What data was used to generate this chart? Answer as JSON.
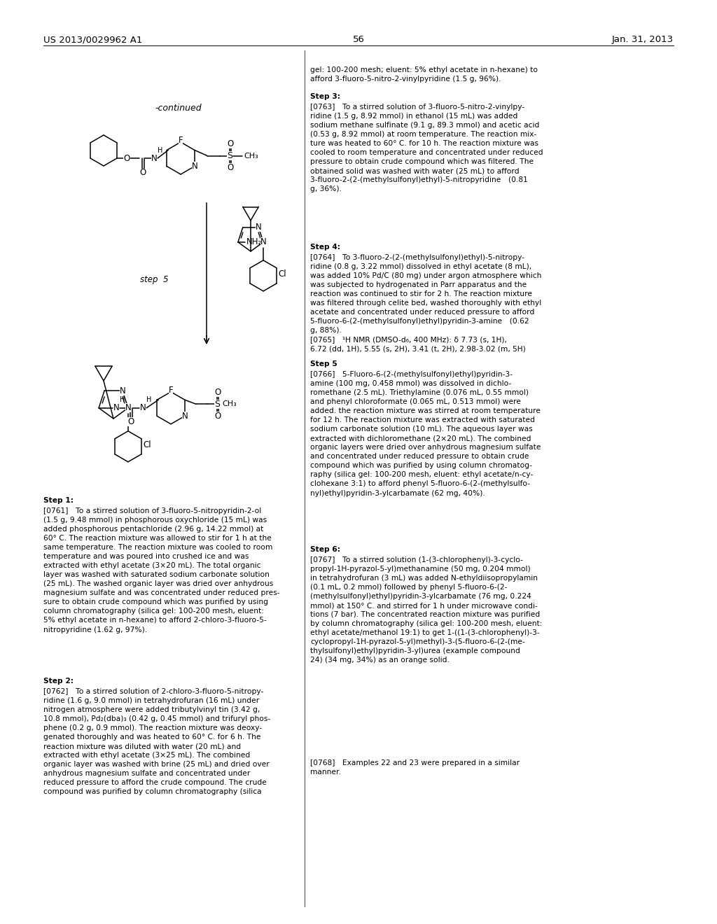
{
  "page_number": "56",
  "patent_number": "US 2013/0029962 A1",
  "patent_date": "Jan. 31, 2013",
  "background_color": "#ffffff",
  "right_col_top": "gel: 100-200 mesh; eluent: 5% ethyl acetate in n-hexane) to\nafford 3-fluoro-5-nitro-2-vinylpyridine (1.5 g, 96%).",
  "step3_header": "Step 3:",
  "step3_para": "[0763] To a stirred solution of 3-fluoro-5-nitro-2-vinylpy-\nridine (1.5 g, 8.92 mmol) in ethanol (15 mL) was added\nsodium methane sulfinate (9.1 g, 89.3 mmol) and acetic acid\n(0.53 g, 8.92 mmol) at room temperature. The reaction mix-\nture was heated to 60° C. for 10 h. The reaction mixture was\ncooled to room temperature and concentrated under reduced\npressure to obtain crude compound which was filtered. The\nobtained solid was washed with water (25 mL) to afford\n3-fluoro-2-(2-(methylsulfonyl)ethyl)-5-nitropyridine (0.81\ng, 36%).",
  "step4_header": "Step 4:",
  "step4_para": "[0764] To 3-fluoro-2-(2-(methylsulfonyl)ethyl)-5-nitropy-\nridine (0.8 g, 3.22 mmol) dissolved in ethyl acetate (8 mL),\nwas added 10% Pd/C (80 mg) under argon atmosphere which\nwas subjected to hydrogenated in Parr apparatus and the\nreaction was continued to stir for 2 h. The reaction mixture\nwas filtered through celite bed, washed thoroughly with ethyl\nacetate and concentrated under reduced pressure to afford\n5-fluoro-6-(2-(methylsulfonyl)ethyl)pyridin-3-amine (0.62\ng, 88%).",
  "nmr_para": "[0765] ¹H NMR (DMSO-d₆, 400 MHz): δ 7.73 (s, 1H),\n6.72 (dd, 1H), 5.55 (s, 2H), 3.41 (t, 2H), 2.98-3.02 (m, 5H)",
  "step5_header": "Step 5",
  "step5_para": "[0766] 5-Fluoro-6-(2-(methylsulfonyl)ethyl)pyridin-3-\namine (100 mg, 0.458 mmol) was dissolved in dichlo-\nromethane (2.5 mL). Triethylamine (0.076 mL, 0.55 mmol)\nand phenyl chloroformate (0.065 mL, 0.513 mmol) were\nadded. the reaction mixture was stirred at room temperature\nfor 12 h. The reaction mixture was extracted with saturated\nsodium carbonate solution (10 mL). The aqueous layer was\nextracted with dichloromethane (2×20 mL). The combined\norganic layers were dried over anhydrous magnesium sulfate\nand concentrated under reduced pressure to obtain crude\ncompound which was purified by using column chromatog-\nraphy (silica gel: 100-200 mesh, eluent: ethyl acetate/n-cy-\nclohexane 3:1) to afford phenyl 5-fluoro-6-(2-(methylsulfo-\nnyl)ethyl)pyridin-3-ylcarbamate (62 mg, 40%).",
  "step6_header": "Step 6:",
  "step6_para": "[0767] To a stirred solution (1-(3-chlorophenyl)-3-cyclo-\npropyl-1H-pyrazol-5-yl)methanamine (50 mg, 0.204 mmol)\nin tetrahydrofuran (3 mL) was added N-ethyldiisopropylamin\n(0.1 mL, 0.2 mmol) followed by phenyl 5-fluoro-6-(2-\n(methylsulfonyl)ethyl)pyridin-3-ylcarbamate (76 mg, 0.224\nmmol) at 150° C. and stirred for 1 h under microwave condi-\ntions (7 bar). The concentrated reaction mixture was purified\nby column chromatography (silica gel: 100-200 mesh, eluent:\nethyl acetate/methanol 19:1) to get 1-((1-(3-chlorophenyl)-3-\ncyclopropyl-1H-pyrazol-5-yl)methyl)-3-(5-fluoro-6-(2-(me-\nthylsulfonyl)ethyl)pyridin-3-yl)urea (example compound\n24) (34 mg, 34%) as an orange solid.",
  "step7_para": "[0768] Examples 22 and 23 were prepared in a similar\nmanner.",
  "step1_header": "Step 1:",
  "step1_para": "[0761] To a stirred solution of 3-fluoro-5-nitropyridin-2-ol\n(1.5 g, 9.48 mmol) in phosphorous oxychloride (15 mL) was\nadded phosphorous pentachloride (2.96 g, 14.22 mmol) at\n60° C. The reaction mixture was allowed to stir for 1 h at the\nsame temperature. The reaction mixture was cooled to room\ntemperature and was poured into crushed ice and was\nextracted with ethyl acetate (3×20 mL). The total organic\nlayer was washed with saturated sodium carbonate solution\n(25 mL). The washed organic layer was dried over anhydrous\nmagnesium sulfate and was concentrated under reduced pres-\nsure to obtain crude compound which was purified by using\ncolumn chromatography (silica gel: 100-200 mesh, eluent:\n5% ethyl acetate in n-hexane) to afford 2-chloro-3-fluoro-5-\nnitropyridine (1.62 g, 97%).",
  "step2_header": "Step 2:",
  "step2_para": "[0762] To a stirred solution of 2-chloro-3-fluoro-5-nitropy-\nridine (1.6 g, 9.0 mmol) in tetrahydrofuran (16 mL) under\nnitrogen atmosphere were added tributylvinyl tin (3.42 g,\n10.8 mmol), Pd₂(dba)₃ (0.42 g, 0.45 mmol) and trifuryl phos-\nphene (0.2 g, 0.9 mmol). The reaction mixture was deoxy-\ngenated thoroughly and was heated to 60° C. for 6 h. The\nreaction mixture was diluted with water (20 mL) and\nextracted with ethyl acetate (3×25 mL). The combined\norganic layer was washed with brine (25 mL) and dried over\nanhydrous magnesium sulfate and concentrated under\nreduced pressure to afford the crude compound. The crude\ncompound was purified by column chromatography (silica"
}
